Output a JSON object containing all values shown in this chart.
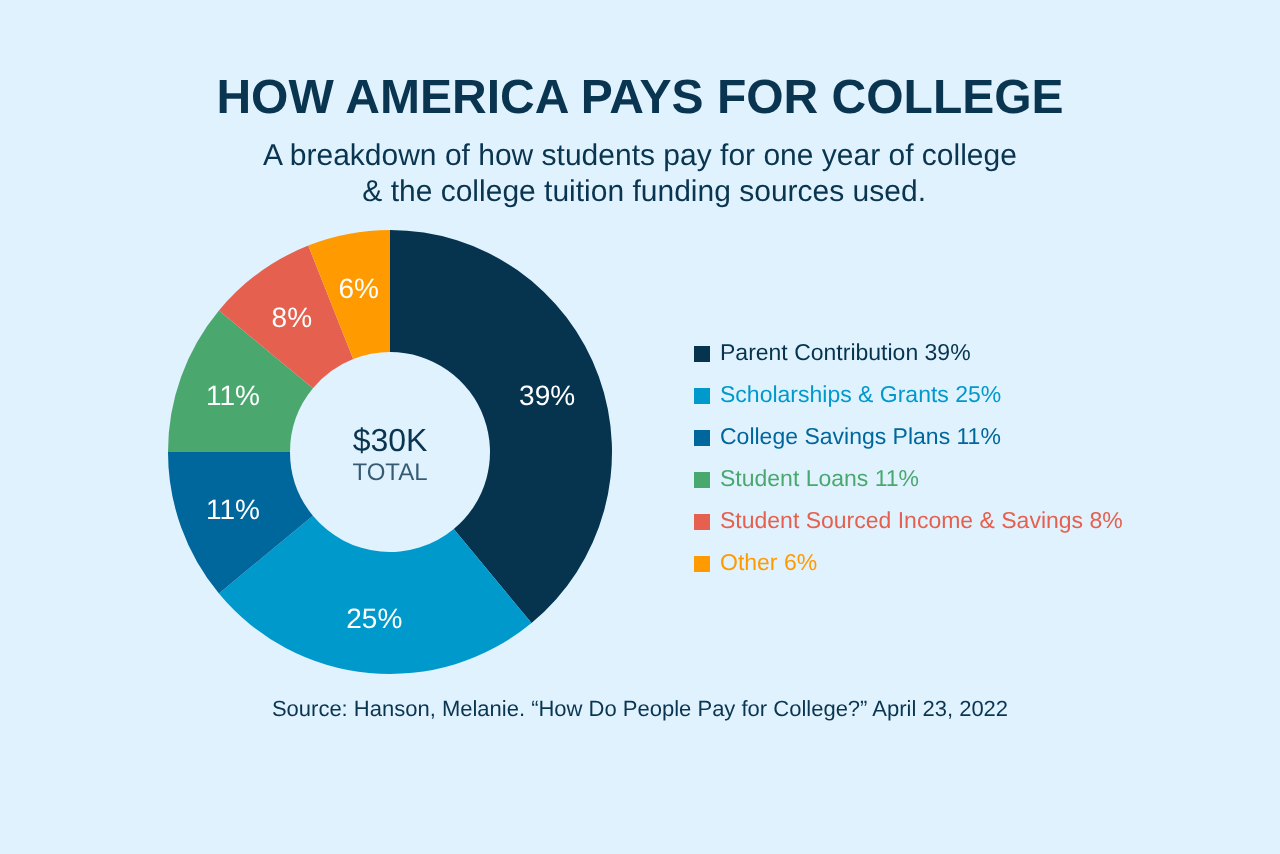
{
  "chart_data": {
    "type": "donut",
    "title": "HOW AMERICA PAYS FOR COLLEGE",
    "subtitle": "A breakdown of how students pay for one year of college & the college tuition funding sources used.",
    "categories": [
      "Parent Contribution",
      "Scholarships & Grants",
      "College Savings Plans",
      "Student Loans",
      "Student Sourced Income & Savings",
      "Other"
    ],
    "values": [
      39,
      25,
      11,
      11,
      8,
      6
    ],
    "colors": [
      "#06344f",
      "#0099cc",
      "#00679c",
      "#4aa86f",
      "#e5604e",
      "#ff9a00"
    ],
    "value_labels": [
      "39%",
      "25%",
      "11%",
      "11%",
      "8%",
      "6%"
    ],
    "legend": "right",
    "annotations": [
      "$30K",
      "TOTAL",
      "Source: Hanson, Melanie. “How Do People Pay for College?” April 23, 2022"
    ]
  }
}
